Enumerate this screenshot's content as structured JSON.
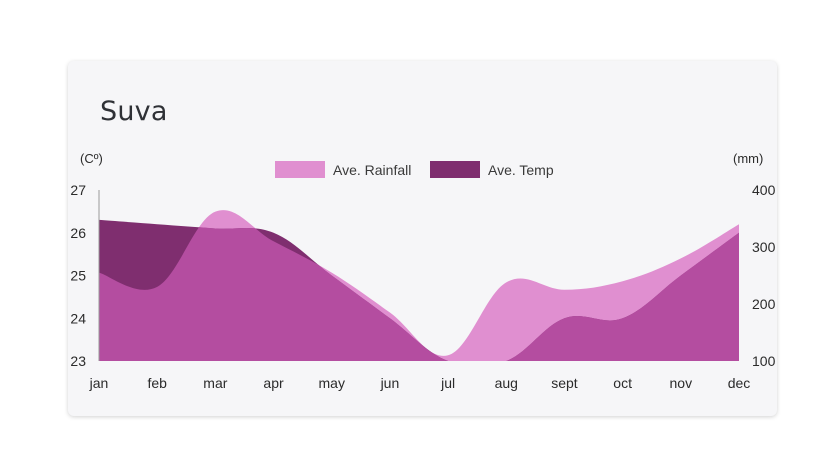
{
  "card": {
    "title": "Suva"
  },
  "chart_data": {
    "type": "area",
    "title": "Suva",
    "categories": [
      "jan",
      "feb",
      "mar",
      "apr",
      "may",
      "jun",
      "jul",
      "aug",
      "sept",
      "oct",
      "nov",
      "dec"
    ],
    "y_left": {
      "label": "(Cº)",
      "min": 23,
      "max": 27,
      "ticks": [
        23,
        24,
        25,
        26,
        27
      ]
    },
    "y_right": {
      "label": "(mm)",
      "min": 100,
      "max": 400,
      "ticks": [
        100,
        200,
        300,
        400
      ]
    },
    "legend_position": "top-center",
    "grid": false,
    "series": [
      {
        "name": "Ave. Rainfall",
        "axis": "right",
        "color": "#e08fd0",
        "values": [
          255,
          230,
          362,
          310,
          255,
          185,
          110,
          238,
          225,
          240,
          280,
          340
        ]
      },
      {
        "name": "Ave. Temp",
        "axis": "left",
        "color": "#7f2e6f",
        "values": [
          26.3,
          26.2,
          26.1,
          26.0,
          25.0,
          24.0,
          23.0,
          23.0,
          24.0,
          24.0,
          25.0,
          26.0
        ]
      }
    ],
    "overlap_color": "#b44da0"
  }
}
